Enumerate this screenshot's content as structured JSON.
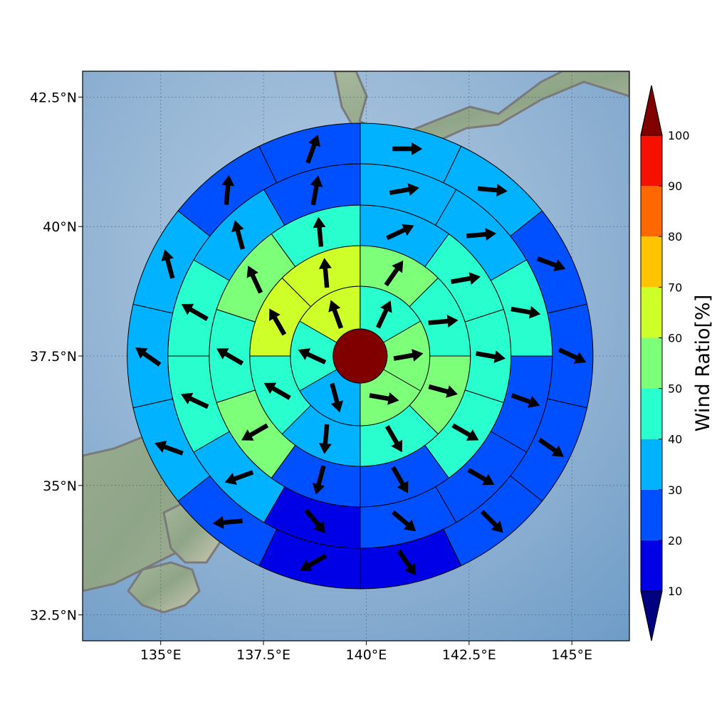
{
  "chart_data": {
    "type": "heatmap",
    "subtype": "polar-sector wind ratio map with wind direction arrows",
    "map": {
      "x_ticks": [
        {
          "value": 135.0,
          "label": "135°E"
        },
        {
          "value": 137.5,
          "label": "137.5°E"
        },
        {
          "value": 140.0,
          "label": "140°E"
        },
        {
          "value": 142.5,
          "label": "142.5°E"
        },
        {
          "value": 145.0,
          "label": "145°E"
        }
      ],
      "y_ticks": [
        {
          "value": 32.5,
          "label": "32.5°N"
        },
        {
          "value": 35.0,
          "label": "35°N"
        },
        {
          "value": 37.5,
          "label": "37.5°N"
        },
        {
          "value": 40.0,
          "label": "40°N"
        },
        {
          "value": 42.5,
          "label": "42.5°N"
        }
      ],
      "xlim": [
        133.1,
        146.4
      ],
      "ylim": [
        32.0,
        43.0
      ],
      "grid": true,
      "center": {
        "lon": 139.85,
        "lat": 37.5
      }
    },
    "colorbar": {
      "label": "Wind Ratio[%]",
      "ticks": [
        "10",
        "20",
        "30",
        "40",
        "50",
        "60",
        "70",
        "80",
        "90",
        "100"
      ],
      "bins": [
        {
          "from": 10,
          "to": 20,
          "color": "#0000e6"
        },
        {
          "from": 20,
          "to": 30,
          "color": "#0050ff"
        },
        {
          "from": 30,
          "to": 40,
          "color": "#00b2ff"
        },
        {
          "from": 40,
          "to": 50,
          "color": "#29ffce"
        },
        {
          "from": 50,
          "to": 60,
          "color": "#7dff7a"
        },
        {
          "from": 60,
          "to": 70,
          "color": "#ceff29"
        },
        {
          "from": 70,
          "to": 80,
          "color": "#ffc400"
        },
        {
          "from": 80,
          "to": 90,
          "color": "#ff6800"
        },
        {
          "from": 90,
          "to": 100,
          "color": "#f51000"
        }
      ],
      "under_color": "#000080",
      "over_color": "#800000"
    },
    "center_value_color": "#800000",
    "rings": [
      {
        "ring": 1,
        "sectors": 6,
        "colors": [
          "#29ffce",
          "#7dff7a",
          "#7dff7a",
          "#00b2ff",
          "#29ffce",
          "#ceff29"
        ],
        "wind_dir_deg": [
          25,
          80,
          100,
          165,
          295,
          340
        ]
      },
      {
        "ring": 2,
        "sectors": 8,
        "colors": [
          "#7dff7a",
          "#29ffce",
          "#7dff7a",
          "#29ffce",
          "#00b2ff",
          "#29ffce",
          "#ceff29",
          "#ceff29"
        ],
        "wind_dir_deg": [
          35,
          85,
          105,
          150,
          185,
          300,
          330,
          355
        ]
      },
      {
        "ring": 3,
        "sectors": 10,
        "colors": [
          "#00b2ff",
          "#29ffce",
          "#29ffce",
          "#29ffce",
          "#0050ff",
          "#0050ff",
          "#7dff7a",
          "#29ffce",
          "#7dff7a",
          "#29ffce"
        ],
        "wind_dir_deg": [
          65,
          80,
          100,
          120,
          150,
          195,
          240,
          300,
          335,
          355
        ]
      },
      {
        "ring": 4,
        "sectors": 12,
        "colors": [
          "#00b2ff",
          "#00b2ff",
          "#29ffce",
          "#0050ff",
          "#0050ff",
          "#0050ff",
          "#0000e6",
          "#00b2ff",
          "#29ffce",
          "#29ffce",
          "#00b2ff",
          "#0050ff"
        ],
        "wind_dir_deg": [
          80,
          85,
          100,
          110,
          120,
          130,
          140,
          250,
          295,
          300,
          345,
          10
        ]
      },
      {
        "ring": 5,
        "sectors": 14,
        "colors": [
          "#00b2ff",
          "#00b2ff",
          "#0050ff",
          "#0050ff",
          "#0050ff",
          "#0050ff",
          "#0000e6",
          "#0000e6",
          "#0050ff",
          "#00b2ff",
          "#00b2ff",
          "#00b2ff",
          "#0050ff",
          "#0050ff"
        ],
        "wind_dir_deg": [
          90,
          95,
          110,
          115,
          125,
          135,
          145,
          240,
          265,
          290,
          305,
          345,
          5,
          20
        ]
      },
      {
        "ring": 6,
        "sectors": 16,
        "colors": [
          "#00b2ff",
          "#00b2ff",
          "#0050ff",
          "#0050ff",
          "#0050ff",
          "#0000e6",
          "#0000e6",
          "#0000e6",
          "#0000e6",
          "#0050ff",
          "#0050ff",
          "#0050ff",
          "#00b2ff",
          "#0050ff",
          "#0050ff",
          "#0000e6"
        ],
        "wind_dir_deg": [
          95,
          100,
          110,
          115,
          120,
          125,
          130,
          95,
          270,
          260,
          285,
          300,
          310,
          330,
          345,
          10
        ]
      }
    ]
  }
}
